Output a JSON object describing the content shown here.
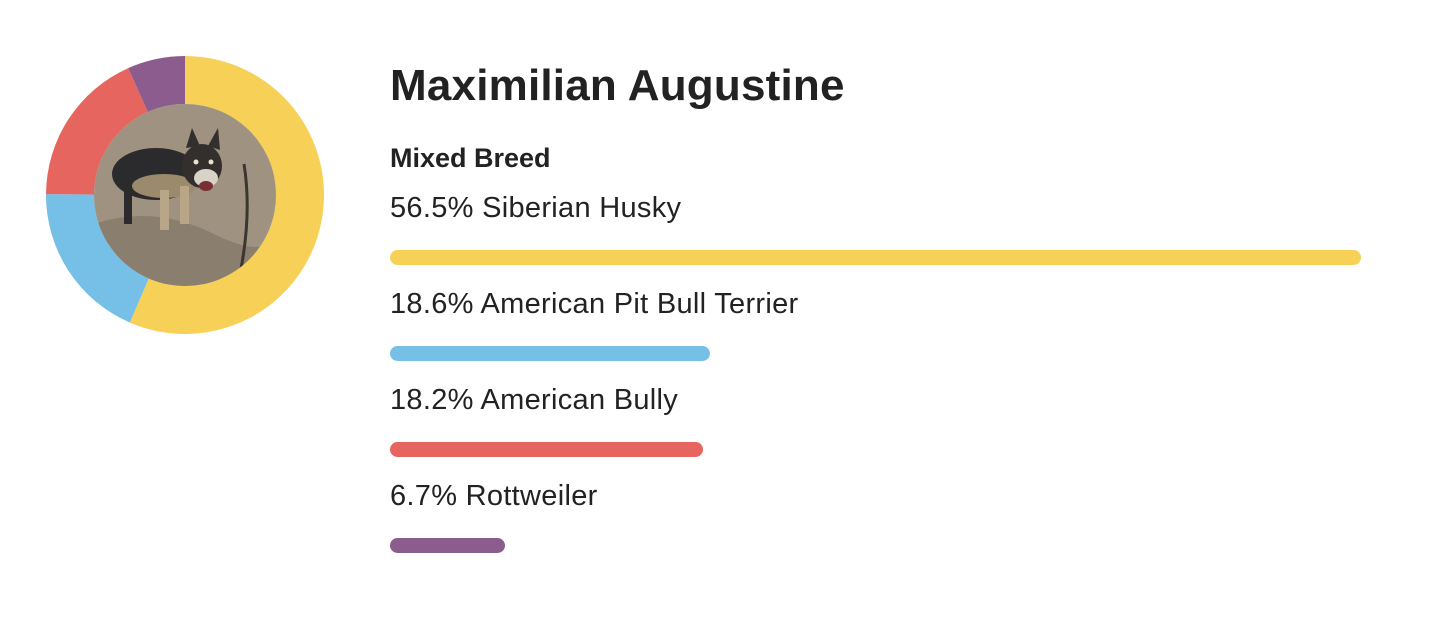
{
  "profile": {
    "name": "Maximilian Augustine",
    "breed_type": "Mixed Breed",
    "photo_icon": "dog-photo"
  },
  "chart_data": {
    "type": "pie",
    "categories": [
      "Siberian Husky",
      "American Pit Bull Terrier",
      "American Bully",
      "Rottweiler"
    ],
    "values": [
      56.5,
      18.6,
      18.2,
      6.7
    ],
    "labels": [
      "56.5% Siberian Husky",
      "18.6% American Pit Bull Terrier",
      "18.2% American Bully",
      "6.7% Rottweiler"
    ],
    "colors": [
      "#F7D157",
      "#76C0E8",
      "#E7655F",
      "#8C5C8E"
    ],
    "title": "",
    "xlabel": "",
    "ylabel": ""
  }
}
